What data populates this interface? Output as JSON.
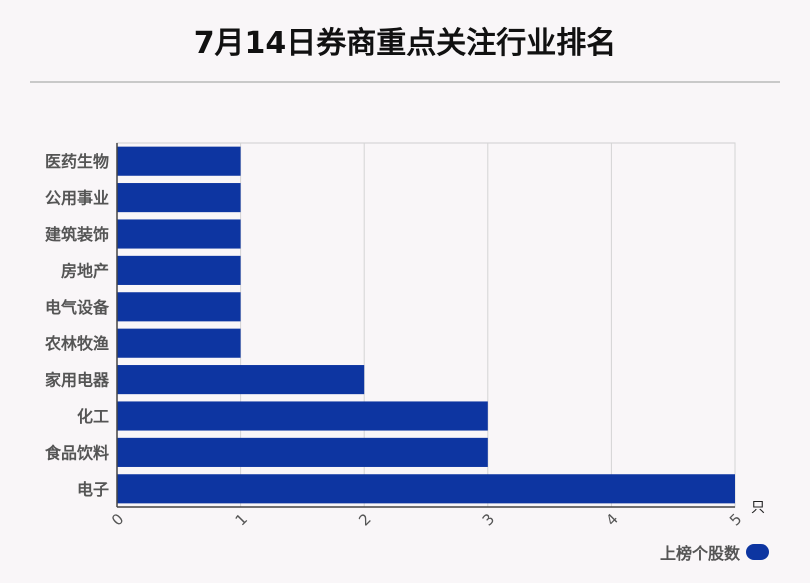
{
  "title": "7月14日券商重点关注行业排名",
  "chart_data": {
    "type": "bar",
    "orientation": "horizontal",
    "title": "7月14日券商重点关注行业排名",
    "categories": [
      "医药生物",
      "公用事业",
      "建筑装饰",
      "房地产",
      "电气设备",
      "农林牧渔",
      "家用电器",
      "化工",
      "食品饮料",
      "电子"
    ],
    "series": [
      {
        "name": "上榜个股数",
        "values": [
          1,
          1,
          1,
          1,
          1,
          1,
          2,
          3,
          3,
          5
        ]
      }
    ],
    "xlim": [
      0,
      5
    ],
    "xticks": [
      "0",
      "1",
      "2",
      "3",
      "4",
      "5"
    ],
    "xunit": "只",
    "grid": true,
    "legend": "bottom-right",
    "bar_color": "#0d35a1"
  }
}
